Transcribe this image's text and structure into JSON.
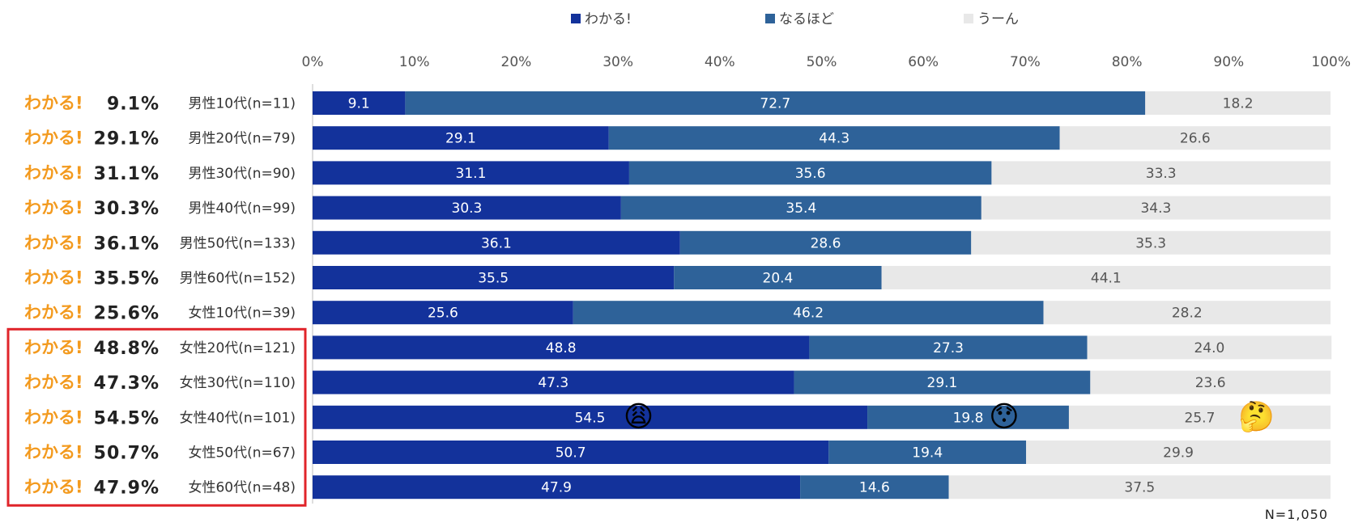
{
  "chart_data": {
    "type": "bar",
    "orientation": "horizontal",
    "stacked": true,
    "percent_stacked": true,
    "legend_position": "top",
    "xlim": [
      0,
      100
    ],
    "x_ticks": [
      "0%",
      "10%",
      "20%",
      "30%",
      "40%",
      "50%",
      "60%",
      "70%",
      "80%",
      "90%",
      "100%"
    ],
    "label_prefix": "わかる!",
    "categories": [
      "男性10代(n=11)",
      "男性20代(n=79)",
      "男性30代(n=90)",
      "男性40代(n=99)",
      "男性50代(n=133)",
      "男性60代(n=152)",
      "女性10代(n=39)",
      "女性20代(n=121)",
      "女性30代(n=110)",
      "女性40代(n=101)",
      "女性50代(n=67)",
      "女性60代(n=48)"
    ],
    "summary_percents": [
      "9.1%",
      "29.1%",
      "31.1%",
      "30.3%",
      "36.1%",
      "35.5%",
      "25.6%",
      "48.8%",
      "47.3%",
      "54.5%",
      "50.7%",
      "47.9%"
    ],
    "series": [
      {
        "name": "わかる!",
        "color": "#13329b",
        "values": [
          9.1,
          29.1,
          31.1,
          30.3,
          36.1,
          35.5,
          25.6,
          48.8,
          47.3,
          54.5,
          50.7,
          47.9
        ]
      },
      {
        "name": "なるほど",
        "color": "#2e6299",
        "values": [
          72.7,
          44.3,
          35.6,
          35.4,
          28.6,
          20.4,
          46.2,
          27.3,
          29.1,
          19.8,
          19.4,
          14.6
        ]
      },
      {
        "name": "うーん",
        "color": "#e8e8e8",
        "values": [
          18.2,
          26.6,
          33.3,
          34.3,
          35.3,
          44.1,
          28.2,
          24.0,
          23.6,
          25.7,
          29.9,
          37.5
        ]
      }
    ],
    "highlighted_rows": [
      7,
      8,
      9,
      10,
      11
    ],
    "highlight_color": "#e0242a",
    "emoji_annotations": [
      {
        "row": 9,
        "series": 0,
        "emoji": "😩"
      },
      {
        "row": 9,
        "series": 1,
        "emoji": "😯"
      },
      {
        "row": 9,
        "series": 2,
        "emoji": "🤔"
      }
    ],
    "footnote": "N=1,050"
  }
}
